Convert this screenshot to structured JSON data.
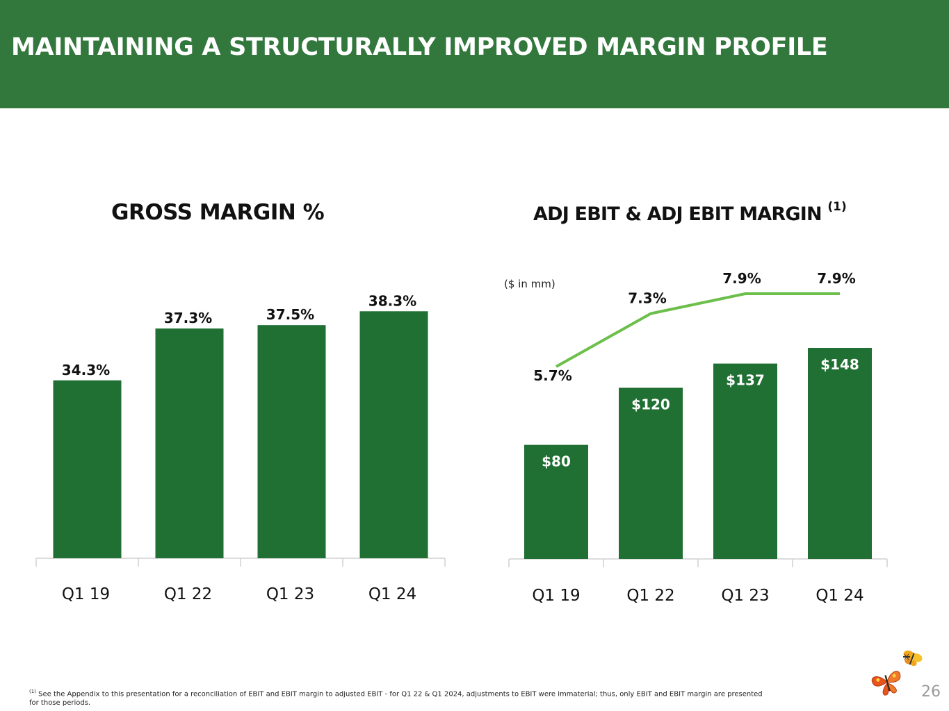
{
  "header": {
    "title": "MAINTAINING A STRUCTURALLY IMPROVED MARGIN PROFILE"
  },
  "chart_data": [
    {
      "type": "bar",
      "title": "GROSS MARGIN %",
      "categories": [
        "Q1 19",
        "Q1 22",
        "Q1 23",
        "Q1 24"
      ],
      "values": [
        34.3,
        37.3,
        37.5,
        38.3
      ],
      "labels": [
        "34.3%",
        "37.3%",
        "37.5%",
        "38.3%"
      ],
      "ylim": [
        24,
        40
      ],
      "xlabel": "",
      "ylabel": "",
      "bar_color": "#206f33"
    },
    {
      "type": "bar+line",
      "title": "ADJ EBIT & ADJ EBIT MARGIN",
      "title_superscript": "(1)",
      "unit_note": "($ in mm)",
      "categories": [
        "Q1 19",
        "Q1 22",
        "Q1 23",
        "Q1 24"
      ],
      "series": [
        {
          "name": "Adj EBIT",
          "type": "bar",
          "values": [
            80,
            120,
            137,
            148
          ],
          "labels": [
            "$80",
            "$120",
            "$137",
            "$148"
          ],
          "ylim": [
            0,
            200
          ]
        },
        {
          "name": "Adj EBIT Margin",
          "type": "line",
          "values": [
            5.7,
            7.3,
            7.9,
            7.9
          ],
          "labels": [
            "5.7%",
            "7.3%",
            "7.9%",
            "7.9%"
          ],
          "ylim": [
            0,
            10
          ]
        }
      ],
      "bar_color": "#206f33",
      "line_color": "#6cbf4a"
    }
  ],
  "footnote": {
    "marker": "(1)",
    "text": "See the Appendix to this presentation for a reconciliation of EBIT and EBIT margin to adjusted EBIT - for Q1 22 & Q1 2024, adjustments to EBIT were immaterial; thus, only EBIT and EBIT margin are presented for those periods."
  },
  "page_number": "26",
  "logo": {
    "icon": "butterfly-logo-icon"
  }
}
